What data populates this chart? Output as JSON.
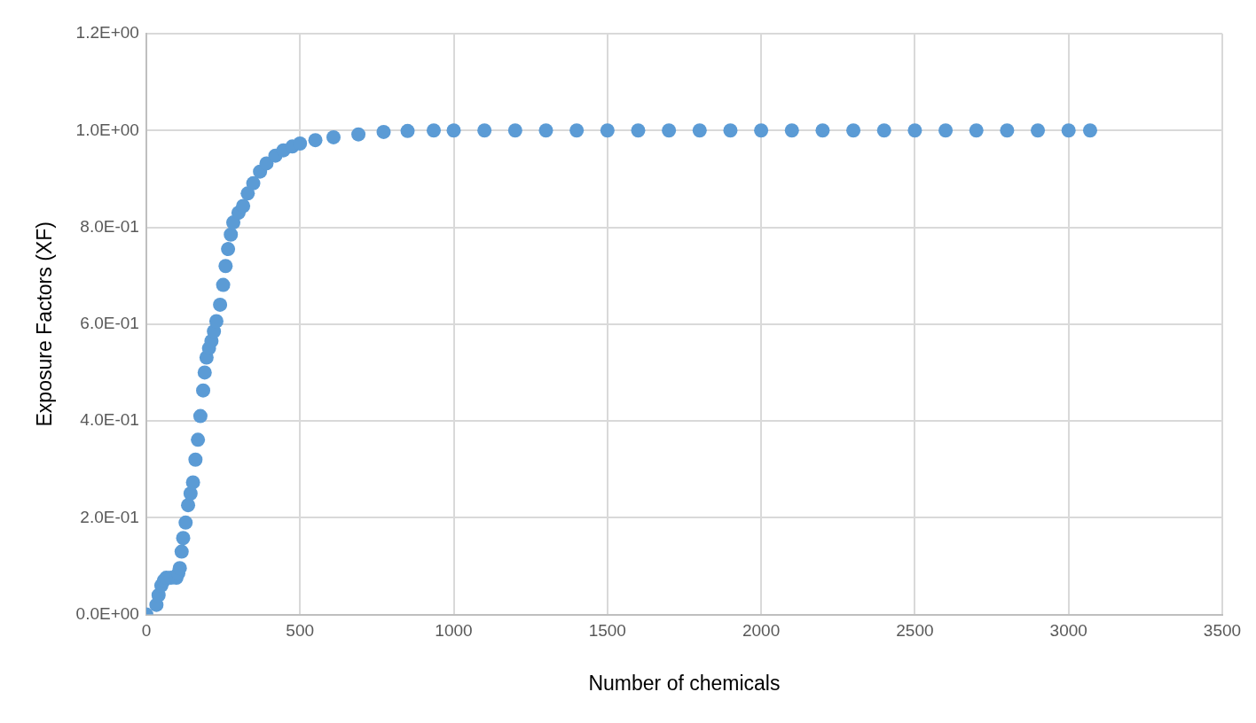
{
  "chart_data": {
    "type": "scatter",
    "xlabel": "Number of chemicals",
    "ylabel": "Exposure Factors (XF)",
    "xlim": [
      0,
      3500
    ],
    "xticks": [
      0,
      500,
      1000,
      1500,
      2000,
      2500,
      3000,
      3500
    ],
    "ylim": [
      0,
      1.2
    ],
    "yticks": [
      {
        "value": 0,
        "label": "0.0E+00"
      },
      {
        "value": 0.2,
        "label": "2.0E-01"
      },
      {
        "value": 0.4,
        "label": "4.0E-01"
      },
      {
        "value": 0.6,
        "label": "6.0E-01"
      },
      {
        "value": 0.8,
        "label": "8.0E-01"
      },
      {
        "value": 1.0,
        "label": "1.0E+00"
      },
      {
        "value": 1.2,
        "label": "1.2E+00"
      }
    ],
    "grid": true,
    "legend": false,
    "marker": "circle",
    "series": [
      {
        "color": "#5b9bd5",
        "x": [
          0,
          33,
          40,
          49,
          57,
          65,
          80,
          98,
          104,
          109,
          115,
          120,
          128,
          136,
          144,
          152,
          160,
          168,
          176,
          185,
          190,
          196,
          204,
          212,
          220,
          228,
          240,
          250,
          258,
          266,
          275,
          283,
          300,
          315,
          330,
          348,
          370,
          391,
          420,
          446,
          475,
          500,
          550,
          609,
          690,
          772,
          850,
          935,
          1000,
          1100,
          1200,
          1300,
          1400,
          1500,
          1600,
          1700,
          1800,
          1900,
          2000,
          2100,
          2200,
          2300,
          2400,
          2500,
          2600,
          2700,
          2800,
          2900,
          3000,
          3070
        ],
        "values": [
          0,
          0.02,
          0.04,
          0.06,
          0.07,
          0.076,
          0.076,
          0.076,
          0.085,
          0.096,
          0.13,
          0.158,
          0.19,
          0.226,
          0.25,
          0.273,
          0.32,
          0.361,
          0.41,
          0.463,
          0.5,
          0.531,
          0.55,
          0.565,
          0.585,
          0.606,
          0.64,
          0.681,
          0.72,
          0.755,
          0.785,
          0.81,
          0.83,
          0.844,
          0.87,
          0.891,
          0.915,
          0.932,
          0.948,
          0.959,
          0.967,
          0.973,
          0.98,
          0.986,
          0.992,
          0.997,
          0.999,
          1.0,
          1.0,
          1.0,
          1.0,
          1.0,
          1.0,
          1.0,
          1.0,
          1.0,
          1.0,
          1.0,
          1.0,
          1.0,
          1.0,
          1.0,
          1.0,
          1.0,
          1.0,
          1.0,
          1.0,
          1.0,
          1.0,
          1.0
        ]
      }
    ]
  }
}
